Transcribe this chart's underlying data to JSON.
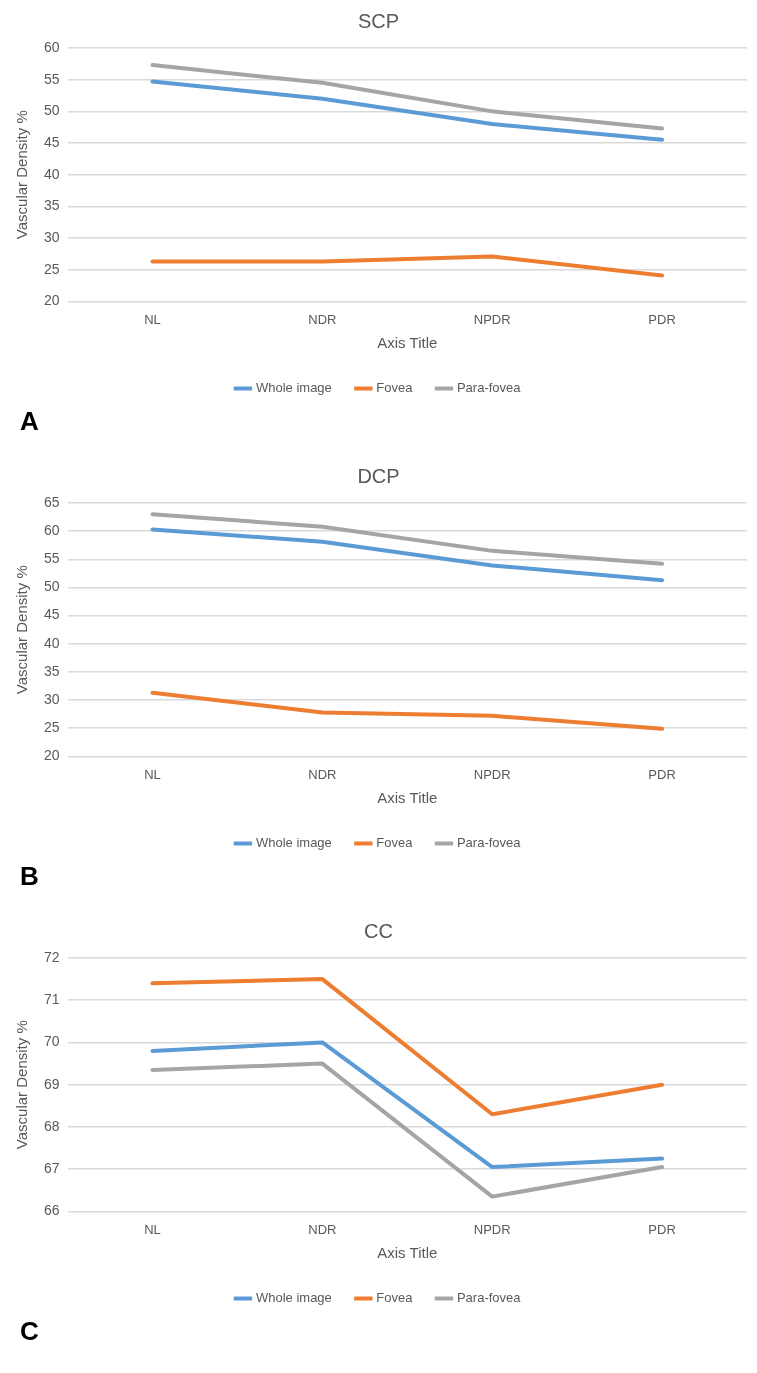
{
  "chart_data": [
    {
      "type": "line",
      "title": "SCP",
      "xlabel": "Axis Title",
      "ylabel": "Vascular Density %",
      "categories": [
        "NL",
        "NDR",
        "NPDR",
        "PDR"
      ],
      "series": [
        {
          "name": "Whole image",
          "color": "#5b9bd5",
          "values": [
            54.7,
            52,
            48,
            45.5
          ]
        },
        {
          "name": "Fovea",
          "color": "#ed7d31",
          "values": [
            26.3,
            26.3,
            27.1,
            24.1
          ]
        },
        {
          "name": "Para-fovea",
          "color": "#a5a5a5",
          "values": [
            57.3,
            54.5,
            50,
            47.3
          ]
        }
      ],
      "ylim": [
        20,
        60
      ],
      "yticks": [
        20,
        25,
        30,
        35,
        40,
        45,
        50,
        55,
        60
      ],
      "grid": "y",
      "legend": "bottom",
      "marker": "none",
      "line_style": "solid",
      "annotations": [
        "A"
      ]
    },
    {
      "type": "line",
      "title": "DCP",
      "xlabel": "Axis Title",
      "ylabel": "Vascular Density %",
      "categories": [
        "NL",
        "NDR",
        "NPDR",
        "PDR"
      ],
      "series": [
        {
          "name": "Whole image",
          "color": "#5b9bd5",
          "values": [
            60.3,
            58.1,
            53.9,
            51.3
          ]
        },
        {
          "name": "Fovea",
          "color": "#ed7d31",
          "values": [
            31.3,
            27.8,
            27.2,
            24.9
          ]
        },
        {
          "name": "Para-fovea",
          "color": "#a5a5a5",
          "values": [
            63,
            60.8,
            56.5,
            54.2
          ]
        }
      ],
      "ylim": [
        20,
        65
      ],
      "yticks": [
        20,
        25,
        30,
        35,
        40,
        45,
        50,
        55,
        60,
        65
      ],
      "grid": "y",
      "legend": "bottom",
      "marker": "none",
      "line_style": "solid",
      "annotations": [
        "B"
      ]
    },
    {
      "type": "line",
      "title": "CC",
      "xlabel": "Axis Title",
      "ylabel": "Vascular Density %",
      "categories": [
        "NL",
        "NDR",
        "NPDR",
        "PDR"
      ],
      "series": [
        {
          "name": "Whole image",
          "color": "#5b9bd5",
          "values": [
            69.8,
            70,
            67.05,
            67.25
          ]
        },
        {
          "name": "Fovea",
          "color": "#ed7d31",
          "values": [
            71.4,
            71.5,
            68.3,
            69
          ]
        },
        {
          "name": "Para-fovea",
          "color": "#a5a5a5",
          "values": [
            69.35,
            69.5,
            66.35,
            67.05
          ]
        }
      ],
      "ylim": [
        66,
        72
      ],
      "yticks": [
        66,
        67,
        68,
        69,
        70,
        71,
        72
      ],
      "grid": "y",
      "legend": "bottom",
      "marker": "none",
      "line_style": "solid",
      "annotations": [
        "C"
      ]
    }
  ]
}
